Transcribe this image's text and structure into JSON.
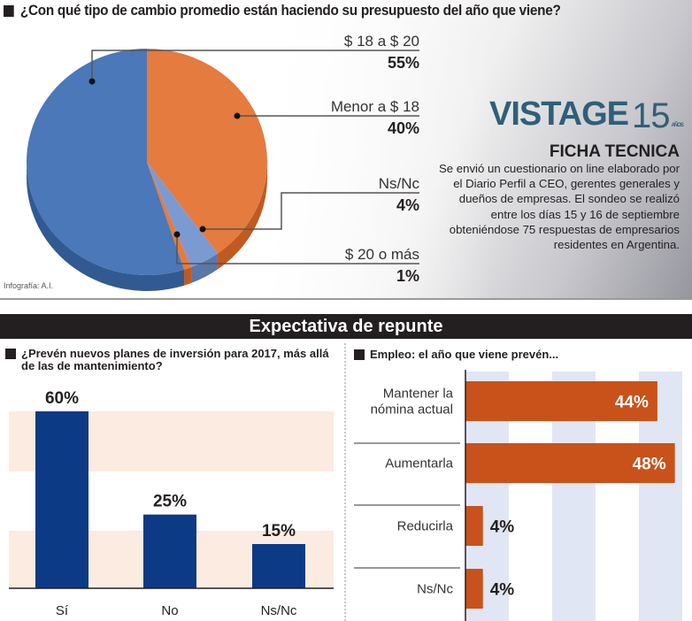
{
  "colors": {
    "pie_blue": "#4a78b8",
    "pie_blue_dark": "#325a92",
    "pie_orange": "#e57b3e",
    "pie_orange_dark": "#c05a23",
    "pie_light_blue": "#7b9ad2",
    "bar_navy": "#0c3a84",
    "band_peach": "#fcebe0",
    "hbar_orange": "#c8521a",
    "stripe_blue": "#e1e6f4",
    "logo_teal": "#2f5f78"
  },
  "top": {
    "question": "¿Con qué tipo de cambio promedio están haciendo su presupuesto del año que viene?",
    "credit": "Infografía: A.I."
  },
  "logo": {
    "name": "VISTAGE",
    "number": "15",
    "suffix": "AÑOS"
  },
  "ficha": {
    "title": "FICHA TECNICA",
    "text": "Se envió un cuestionario on line elaborado por el Diario Perfil a CEO, gerentes generales y dueños de empresas. El sondeo se realizó entre los días 15 y 16 de septiembre obteniéndose 75 respuestas de empresarios residentes en Argentina."
  },
  "banner": {
    "title": "Expectativa de repunte"
  },
  "chart_data": [
    {
      "type": "pie",
      "title": "¿Con qué tipo de cambio promedio están haciendo su presupuesto del año que viene?",
      "slices": [
        {
          "label": "$ 18 a $ 20",
          "value": 55,
          "display": "55%"
        },
        {
          "label": "Menor a $ 18",
          "value": 40,
          "display": "40%"
        },
        {
          "label": "Ns/Nc",
          "value": 4,
          "display": "4%"
        },
        {
          "label": "$ 20 o más",
          "value": 1,
          "display": "1%"
        }
      ]
    },
    {
      "type": "bar",
      "title": "¿Prevén nuevos planes de inversión para 2017, más allá de las de mantenimiento?",
      "categories": [
        "Sí",
        "No",
        "Ns/Nc"
      ],
      "values": [
        60,
        25,
        15
      ],
      "labels": [
        "60%",
        "25%",
        "15%"
      ],
      "ylim": [
        0,
        60
      ],
      "grid": "bands"
    },
    {
      "type": "bar",
      "orientation": "horizontal",
      "title": "Empleo: el año que viene prevén...",
      "categories": [
        "Mantener la nómina actual",
        "Aumentarla",
        "Reducirla",
        "Ns/Nc"
      ],
      "category_lines": [
        [
          "Mantener la",
          "nómina actual"
        ],
        [
          "Aumentarla"
        ],
        [
          "Reducirla"
        ],
        [
          "Ns/Nc"
        ]
      ],
      "values": [
        44,
        48,
        4,
        4
      ],
      "labels": [
        "44%",
        "48%",
        "4%",
        "4%"
      ],
      "xlim": [
        0,
        50
      ],
      "grid": "stripes"
    }
  ]
}
